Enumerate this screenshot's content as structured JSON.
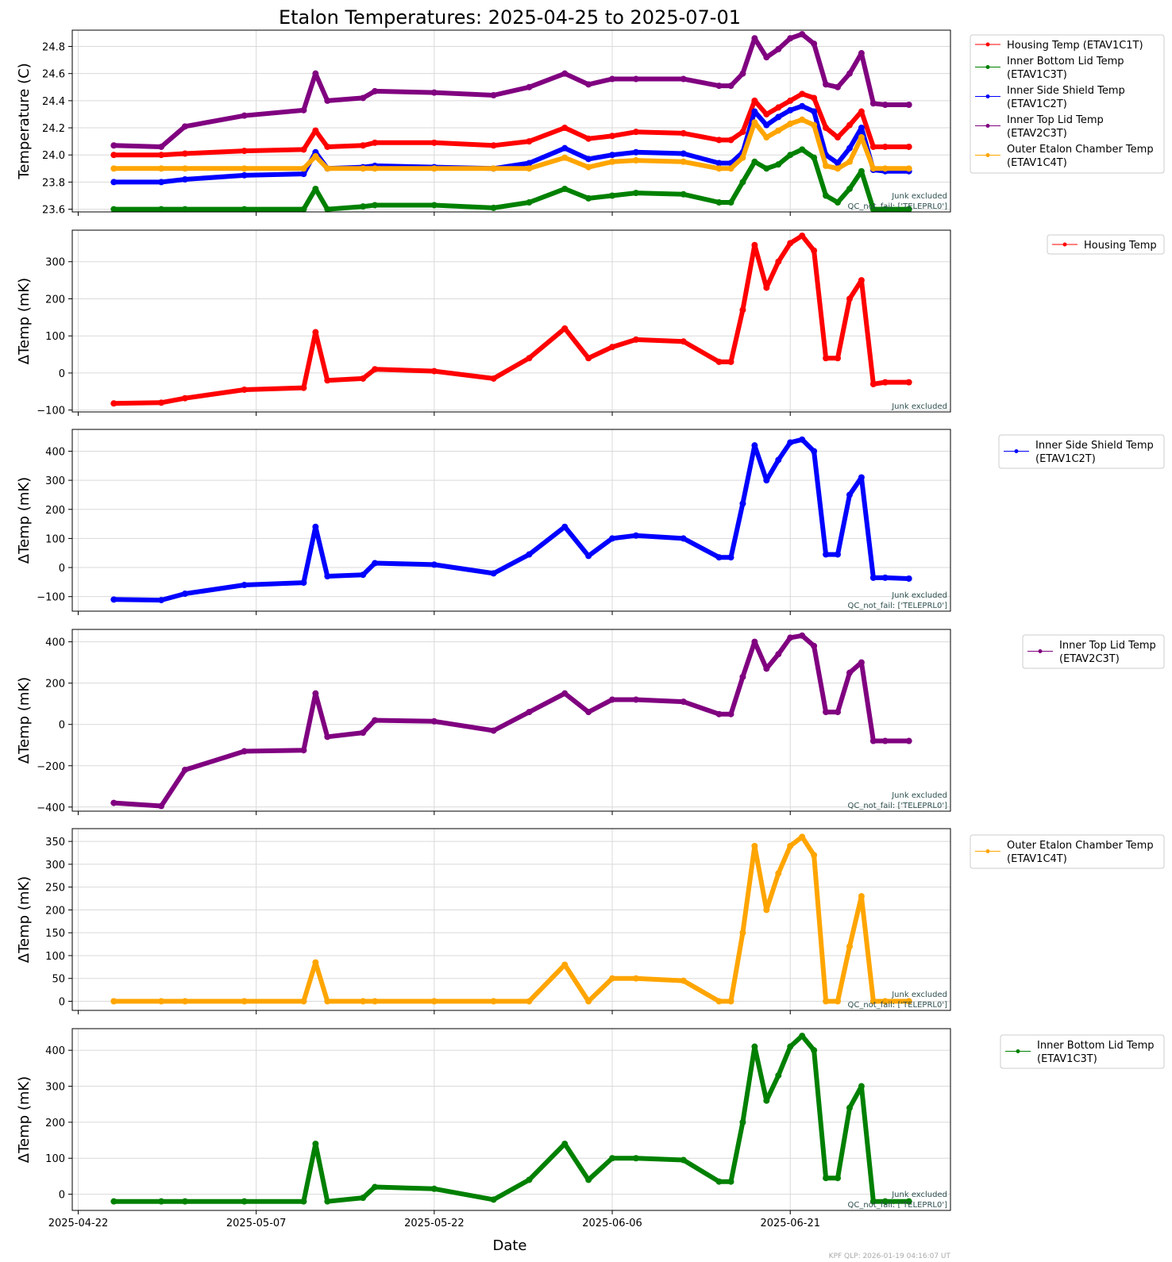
{
  "title": "Etalon Temperatures: 2025-04-25 to 2025-07-01",
  "xlabel": "Date",
  "footer": "KPF QLP: 2026-01-19 04:16:07 UT",
  "x_ticks": [
    "2025-04-22",
    "2025-05-07",
    "2025-05-22",
    "2025-06-06",
    "2025-06-21"
  ],
  "chart_data": [
    {
      "type": "line",
      "ylabel": "Temperature (C)",
      "ylim": [
        23.58,
        24.92
      ],
      "y_ticks": [
        "23.6",
        "23.8",
        "24.0",
        "24.2",
        "24.4",
        "24.6",
        "24.8"
      ],
      "y_tick_values": [
        23.6,
        23.8,
        24.0,
        24.2,
        24.4,
        24.6,
        24.8
      ],
      "grid": true,
      "legend_position": "outside-right",
      "annotations": [
        "Junk excluded",
        "QC_not_fail: ['TELEPRL0']"
      ],
      "x": [
        "2025-04-25",
        "2025-04-29",
        "2025-05-01",
        "2025-05-06",
        "2025-05-11",
        "2025-05-12",
        "2025-05-13",
        "2025-05-16",
        "2025-05-17",
        "2025-05-22",
        "2025-05-27",
        "2025-05-30",
        "2025-06-02",
        "2025-06-04",
        "2025-06-06",
        "2025-06-08",
        "2025-06-12",
        "2025-06-15",
        "2025-06-16",
        "2025-06-17",
        "2025-06-18",
        "2025-06-19",
        "2025-06-20",
        "2025-06-21",
        "2025-06-22",
        "2025-06-23",
        "2025-06-24",
        "2025-06-25",
        "2025-06-26",
        "2025-06-27",
        "2025-06-28",
        "2025-06-29",
        "2025-07-01"
      ],
      "series": [
        {
          "name": "Housing Temp (ETAV1C1T)",
          "color": "#ff0000",
          "values": [
            24.0,
            24.0,
            24.01,
            24.03,
            24.04,
            24.18,
            24.06,
            24.07,
            24.09,
            24.09,
            24.07,
            24.1,
            24.2,
            24.12,
            24.14,
            24.17,
            24.16,
            24.11,
            24.11,
            24.17,
            24.4,
            24.3,
            24.35,
            24.4,
            24.45,
            24.42,
            24.2,
            24.13,
            24.22,
            24.32,
            24.06,
            24.06,
            24.06
          ]
        },
        {
          "name": "Inner Bottom Lid Temp (ETAV1C3T)",
          "color": "#008000",
          "values": [
            23.6,
            23.6,
            23.6,
            23.6,
            23.6,
            23.75,
            23.6,
            23.62,
            23.63,
            23.63,
            23.61,
            23.65,
            23.75,
            23.68,
            23.7,
            23.72,
            23.71,
            23.65,
            23.65,
            23.8,
            23.95,
            23.9,
            23.93,
            24.0,
            24.04,
            23.98,
            23.7,
            23.65,
            23.75,
            23.88,
            23.6,
            23.6,
            23.6
          ]
        },
        {
          "name": "Inner Side Shield Temp (ETAV1C2T)",
          "color": "#0000ff",
          "values": [
            23.8,
            23.8,
            23.82,
            23.85,
            23.86,
            24.02,
            23.9,
            23.91,
            23.92,
            23.91,
            23.9,
            23.94,
            24.05,
            23.97,
            24.0,
            24.02,
            24.01,
            23.94,
            23.94,
            24.02,
            24.32,
            24.22,
            24.28,
            24.33,
            24.36,
            24.32,
            24.0,
            23.94,
            24.05,
            24.2,
            23.89,
            23.88,
            23.88
          ]
        },
        {
          "name": "Inner Top Lid Temp (ETAV2C3T)",
          "color": "#800080",
          "values": [
            24.07,
            24.06,
            24.21,
            24.29,
            24.33,
            24.6,
            24.4,
            24.42,
            24.47,
            24.46,
            24.44,
            24.5,
            24.6,
            24.52,
            24.56,
            24.56,
            24.56,
            24.51,
            24.51,
            24.6,
            24.86,
            24.72,
            24.78,
            24.86,
            24.89,
            24.82,
            24.52,
            24.5,
            24.6,
            24.75,
            24.38,
            24.37,
            24.37
          ]
        },
        {
          "name": "Outer Etalon Chamber Temp (ETAV1C4T)",
          "color": "#ffa500",
          "values": [
            23.9,
            23.9,
            23.9,
            23.9,
            23.9,
            23.99,
            23.9,
            23.9,
            23.9,
            23.9,
            23.9,
            23.9,
            23.98,
            23.91,
            23.95,
            23.96,
            23.95,
            23.9,
            23.9,
            23.98,
            24.24,
            24.13,
            24.18,
            24.23,
            24.26,
            24.22,
            23.92,
            23.9,
            23.95,
            24.13,
            23.9,
            23.9,
            23.9
          ]
        }
      ]
    },
    {
      "type": "line",
      "ylabel": "ΔTemp (mK)",
      "ylim": [
        -105,
        385
      ],
      "y_ticks": [
        "−100",
        "0",
        "100",
        "200",
        "300"
      ],
      "y_tick_values": [
        -100,
        0,
        100,
        200,
        300
      ],
      "grid": true,
      "legend_position": "outside-right",
      "annotations": [
        "Junk excluded"
      ],
      "x": [
        "2025-04-25",
        "2025-04-29",
        "2025-05-01",
        "2025-05-06",
        "2025-05-11",
        "2025-05-12",
        "2025-05-13",
        "2025-05-16",
        "2025-05-17",
        "2025-05-22",
        "2025-05-27",
        "2025-05-30",
        "2025-06-02",
        "2025-06-04",
        "2025-06-06",
        "2025-06-08",
        "2025-06-12",
        "2025-06-15",
        "2025-06-16",
        "2025-06-17",
        "2025-06-18",
        "2025-06-19",
        "2025-06-20",
        "2025-06-21",
        "2025-06-22",
        "2025-06-23",
        "2025-06-24",
        "2025-06-25",
        "2025-06-26",
        "2025-06-27",
        "2025-06-28",
        "2025-06-29",
        "2025-07-01"
      ],
      "series": [
        {
          "name": "Housing Temp",
          "color": "#ff0000",
          "values": [
            -82,
            -80,
            -68,
            -45,
            -40,
            110,
            -20,
            -15,
            10,
            5,
            -15,
            40,
            120,
            40,
            70,
            90,
            85,
            30,
            30,
            170,
            345,
            230,
            300,
            350,
            370,
            330,
            40,
            40,
            200,
            250,
            -30,
            -25,
            -25
          ]
        }
      ]
    },
    {
      "type": "line",
      "ylabel": "ΔTemp (mK)",
      "ylim": [
        -150,
        475
      ],
      "y_ticks": [
        "−100",
        "0",
        "100",
        "200",
        "300",
        "400"
      ],
      "y_tick_values": [
        -100,
        0,
        100,
        200,
        300,
        400
      ],
      "grid": true,
      "legend_position": "outside-right",
      "annotations": [
        "Junk excluded",
        "QC_not_fail: ['TELEPRL0']"
      ],
      "x": [
        "2025-04-25",
        "2025-04-29",
        "2025-05-01",
        "2025-05-06",
        "2025-05-11",
        "2025-05-12",
        "2025-05-13",
        "2025-05-16",
        "2025-05-17",
        "2025-05-22",
        "2025-05-27",
        "2025-05-30",
        "2025-06-02",
        "2025-06-04",
        "2025-06-06",
        "2025-06-08",
        "2025-06-12",
        "2025-06-15",
        "2025-06-16",
        "2025-06-17",
        "2025-06-18",
        "2025-06-19",
        "2025-06-20",
        "2025-06-21",
        "2025-06-22",
        "2025-06-23",
        "2025-06-24",
        "2025-06-25",
        "2025-06-26",
        "2025-06-27",
        "2025-06-28",
        "2025-06-29",
        "2025-07-01"
      ],
      "series": [
        {
          "name": "Inner Side Shield Temp (ETAV1C2T)",
          "color": "#0000ff",
          "values": [
            -110,
            -112,
            -90,
            -60,
            -52,
            140,
            -30,
            -25,
            15,
            10,
            -20,
            45,
            140,
            40,
            100,
            110,
            100,
            35,
            35,
            220,
            420,
            300,
            370,
            430,
            440,
            400,
            45,
            45,
            250,
            310,
            -35,
            -35,
            -38
          ]
        }
      ]
    },
    {
      "type": "line",
      "ylabel": "ΔTemp (mK)",
      "ylim": [
        -420,
        460
      ],
      "y_ticks": [
        "−400",
        "−200",
        "0",
        "200",
        "400"
      ],
      "y_tick_values": [
        -400,
        -200,
        0,
        200,
        400
      ],
      "grid": true,
      "legend_position": "outside-right",
      "annotations": [
        "Junk excluded",
        "QC_not_fail: ['TELEPRL0']"
      ],
      "x": [
        "2025-04-25",
        "2025-04-29",
        "2025-05-01",
        "2025-05-06",
        "2025-05-11",
        "2025-05-12",
        "2025-05-13",
        "2025-05-16",
        "2025-05-17",
        "2025-05-22",
        "2025-05-27",
        "2025-05-30",
        "2025-06-02",
        "2025-06-04",
        "2025-06-06",
        "2025-06-08",
        "2025-06-12",
        "2025-06-15",
        "2025-06-16",
        "2025-06-17",
        "2025-06-18",
        "2025-06-19",
        "2025-06-20",
        "2025-06-21",
        "2025-06-22",
        "2025-06-23",
        "2025-06-24",
        "2025-06-25",
        "2025-06-26",
        "2025-06-27",
        "2025-06-28",
        "2025-06-29",
        "2025-07-01"
      ],
      "series": [
        {
          "name": "Inner Top Lid Temp (ETAV2C3T)",
          "color": "#800080",
          "values": [
            -380,
            -395,
            -220,
            -130,
            -125,
            150,
            -60,
            -40,
            20,
            15,
            -30,
            60,
            150,
            60,
            120,
            120,
            110,
            50,
            50,
            230,
            400,
            270,
            340,
            420,
            430,
            380,
            60,
            60,
            250,
            300,
            -80,
            -80,
            -80
          ]
        }
      ]
    },
    {
      "type": "line",
      "ylabel": "ΔTemp (mK)",
      "ylim": [
        -20,
        378
      ],
      "y_ticks": [
        "0",
        "50",
        "100",
        "150",
        "200",
        "250",
        "300",
        "350"
      ],
      "y_tick_values": [
        0,
        50,
        100,
        150,
        200,
        250,
        300,
        350
      ],
      "grid": true,
      "legend_position": "outside-right",
      "annotations": [
        "Junk excluded",
        "QC_not_fail: ['TELEPRL0']"
      ],
      "x": [
        "2025-04-25",
        "2025-04-29",
        "2025-05-01",
        "2025-05-06",
        "2025-05-11",
        "2025-05-12",
        "2025-05-13",
        "2025-05-16",
        "2025-05-17",
        "2025-05-22",
        "2025-05-27",
        "2025-05-30",
        "2025-06-02",
        "2025-06-04",
        "2025-06-06",
        "2025-06-08",
        "2025-06-12",
        "2025-06-15",
        "2025-06-16",
        "2025-06-17",
        "2025-06-18",
        "2025-06-19",
        "2025-06-20",
        "2025-06-21",
        "2025-06-22",
        "2025-06-23",
        "2025-06-24",
        "2025-06-25",
        "2025-06-26",
        "2025-06-27",
        "2025-06-28",
        "2025-06-29",
        "2025-07-01"
      ],
      "series": [
        {
          "name": "Outer Etalon Chamber Temp (ETAV1C4T)",
          "color": "#ffa500",
          "values": [
            0,
            0,
            0,
            0,
            0,
            85,
            0,
            0,
            0,
            0,
            0,
            0,
            80,
            0,
            50,
            50,
            45,
            0,
            0,
            150,
            340,
            200,
            280,
            340,
            360,
            320,
            0,
            0,
            120,
            230,
            0,
            0,
            0
          ]
        }
      ]
    },
    {
      "type": "line",
      "ylabel": "ΔTemp (mK)",
      "ylim": [
        -45,
        460
      ],
      "y_ticks": [
        "0",
        "100",
        "200",
        "300",
        "400"
      ],
      "y_tick_values": [
        0,
        100,
        200,
        300,
        400
      ],
      "grid": true,
      "legend_position": "outside-right",
      "annotations": [
        "Junk excluded",
        "QC_not_fail: ['TELEPRL0']"
      ],
      "x": [
        "2025-04-25",
        "2025-04-29",
        "2025-05-01",
        "2025-05-06",
        "2025-05-11",
        "2025-05-12",
        "2025-05-13",
        "2025-05-16",
        "2025-05-17",
        "2025-05-22",
        "2025-05-27",
        "2025-05-30",
        "2025-06-02",
        "2025-06-04",
        "2025-06-06",
        "2025-06-08",
        "2025-06-12",
        "2025-06-15",
        "2025-06-16",
        "2025-06-17",
        "2025-06-18",
        "2025-06-19",
        "2025-06-20",
        "2025-06-21",
        "2025-06-22",
        "2025-06-23",
        "2025-06-24",
        "2025-06-25",
        "2025-06-26",
        "2025-06-27",
        "2025-06-28",
        "2025-06-29",
        "2025-07-01"
      ],
      "series": [
        {
          "name": "Inner Bottom Lid Temp (ETAV1C3T)",
          "color": "#008000",
          "values": [
            -20,
            -20,
            -20,
            -20,
            -20,
            140,
            -20,
            -10,
            20,
            15,
            -15,
            40,
            140,
            40,
            100,
            100,
            95,
            35,
            35,
            200,
            410,
            260,
            330,
            410,
            440,
            400,
            45,
            45,
            240,
            300,
            -20,
            -20,
            -20
          ]
        }
      ]
    }
  ]
}
